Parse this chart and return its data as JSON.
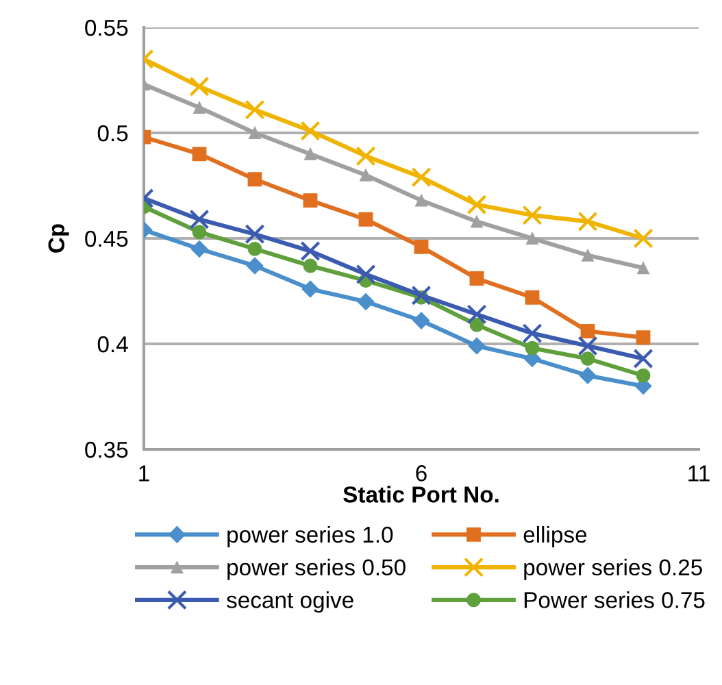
{
  "chart_data": {
    "type": "line",
    "xlabel": "Static Port No.",
    "ylabel": "Cp",
    "x": [
      1,
      2,
      3,
      4,
      5,
      6,
      7,
      8,
      9,
      10
    ],
    "xlim": [
      1,
      11
    ],
    "xticks": [
      1,
      6,
      11
    ],
    "ylim": [
      0.35,
      0.55
    ],
    "yticks": [
      0.35,
      0.4,
      0.45,
      0.5,
      0.55
    ],
    "grid": "y",
    "legend": "bottom",
    "series": [
      {
        "name": "power series 1.0",
        "color": "#4a8fcc",
        "marker": "diamond",
        "values": [
          0.454,
          0.445,
          0.437,
          0.426,
          0.42,
          0.411,
          0.399,
          0.393,
          0.385,
          0.38
        ]
      },
      {
        "name": "ellipse",
        "color": "#e07020",
        "marker": "square",
        "values": [
          0.498,
          0.49,
          0.478,
          0.468,
          0.459,
          0.446,
          0.431,
          0.422,
          0.406,
          0.403
        ]
      },
      {
        "name": "power series 0.50",
        "color": "#a0a0a0",
        "marker": "triangle",
        "values": [
          0.523,
          0.512,
          0.5,
          0.49,
          0.48,
          0.468,
          0.458,
          0.45,
          0.442,
          0.436
        ]
      },
      {
        "name": "power series 0.25",
        "color": "#f0b400",
        "marker": "cross",
        "values": [
          0.535,
          0.522,
          0.511,
          0.501,
          0.489,
          0.479,
          0.466,
          0.461,
          0.458,
          0.45
        ]
      },
      {
        "name": "secant ogive",
        "color": "#3a5bb0",
        "marker": "cross",
        "values": [
          0.469,
          0.459,
          0.452,
          0.444,
          0.433,
          0.423,
          0.414,
          0.405,
          0.399,
          0.393
        ]
      },
      {
        "name": "Power series 0.75",
        "color": "#5fa03c",
        "marker": "circle",
        "values": [
          0.465,
          0.453,
          0.445,
          0.437,
          0.43,
          0.422,
          0.409,
          0.398,
          0.393,
          0.385
        ]
      }
    ]
  }
}
